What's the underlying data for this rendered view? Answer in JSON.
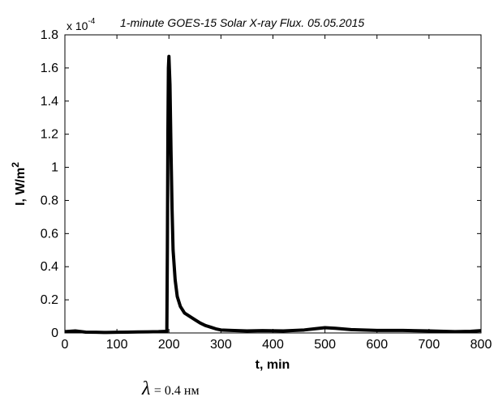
{
  "chart_data": {
    "type": "line",
    "title": "1-minute GOES-15 Solar X-ray Flux. 05.05.2015",
    "multiplier": {
      "base": "x 10",
      "exponent": "-4"
    },
    "xlabel": "t, min",
    "ylabel": {
      "text": "I, W/m",
      "sup": "2"
    },
    "xlim": [
      0,
      800
    ],
    "ylim": [
      0,
      1.8
    ],
    "x_ticks": [
      "0",
      "100",
      "200",
      "300",
      "400",
      "500",
      "600",
      "700",
      "800"
    ],
    "y_ticks": [
      "0",
      "0.2",
      "0.4",
      "0.6",
      "0.8",
      "1",
      "1.2",
      "1.4",
      "1.6",
      "1.8"
    ],
    "grid": false,
    "series": [
      {
        "color": "#000000",
        "x": [
          0,
          20,
          40,
          60,
          80,
          100,
          120,
          140,
          160,
          180,
          196,
          197,
          198,
          199,
          200,
          202,
          204,
          206,
          208,
          212,
          216,
          222,
          230,
          240,
          250,
          260,
          270,
          280,
          290,
          300,
          320,
          350,
          380,
          420,
          460,
          480,
          500,
          520,
          550,
          600,
          650,
          700,
          750,
          780,
          800
        ],
        "y": [
          0.008,
          0.012,
          0.005,
          0.004,
          0.003,
          0.004,
          0.005,
          0.006,
          0.007,
          0.008,
          0.01,
          0.5,
          1.2,
          1.6,
          1.67,
          1.5,
          1.1,
          0.75,
          0.5,
          0.32,
          0.22,
          0.16,
          0.12,
          0.1,
          0.08,
          0.06,
          0.045,
          0.035,
          0.025,
          0.018,
          0.015,
          0.012,
          0.014,
          0.012,
          0.018,
          0.025,
          0.032,
          0.028,
          0.02,
          0.015,
          0.015,
          0.012,
          0.008,
          0.01,
          0.014
        ]
      }
    ]
  },
  "caption": {
    "symbol": "λ",
    "text": "= 0.4 нм"
  }
}
